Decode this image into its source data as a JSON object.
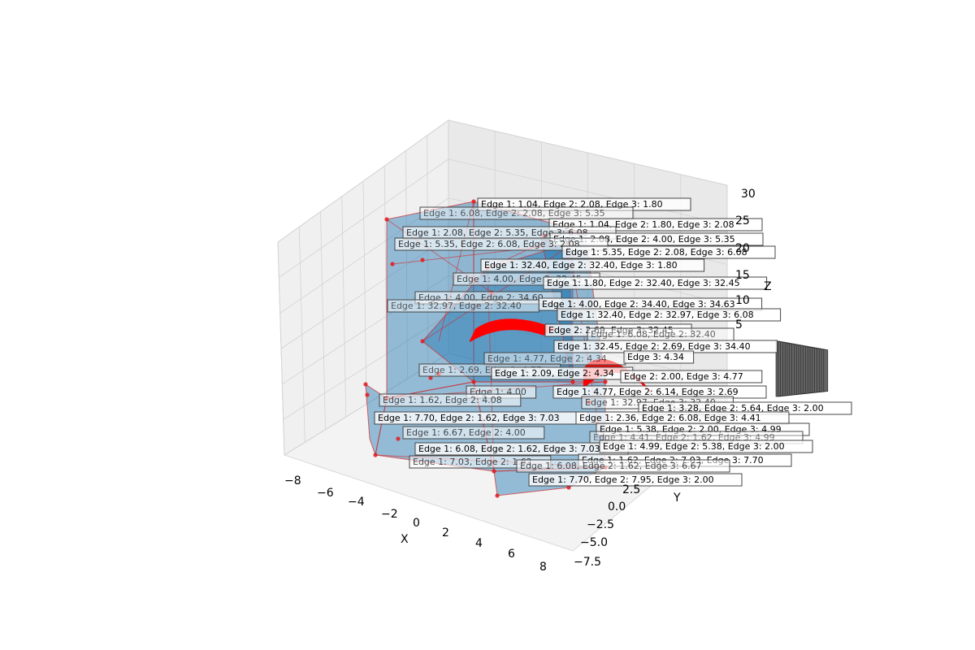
{
  "chart_data": {
    "type": "3d-mesh",
    "xlabel": "X",
    "ylabel": "Y",
    "zlabel": "Z",
    "xlim": [
      -9,
      9
    ],
    "ylim": [
      -8,
      4
    ],
    "zlim": [
      -5,
      30
    ],
    "x_ticks": [
      "−8",
      "−6",
      "−4",
      "−2",
      "0",
      "2",
      "4",
      "6",
      "8"
    ],
    "y_ticks": [
      "−7.5",
      "−5.0",
      "−2.5",
      "0.0",
      "2.5"
    ],
    "z_ticks": [
      "5",
      "10",
      "15",
      "20",
      "25",
      "30"
    ],
    "grid": true,
    "mesh_face_color": "#1f77b4",
    "mesh_edge_color": "#d62728",
    "vertex_color": "#e31a1c",
    "edge_labels": [
      "Edge 1: 1.04, Edge 2: 2.08, Edge 3: 1.80",
      "Edge 1: 6.08, Edge 2: 2.08, Edge 3: 5.35",
      "Edge 1: 1.04, Edge 2: 1.80, Edge 3: 2.08",
      "Edge 1: 2.08, Edge 2: 5.35, Edge 3: 6.08",
      "Edge 1: 2.08, Edge 2: 4.00, Edge 3: 5.35",
      "Edge 1: 5.35, Edge 2: 6.08, Edge 3: 2.08",
      "Edge 1: 5.35, Edge 2: 2.08, Edge 3: 6.08",
      "Edge 1: 32.40, Edge 2: 32.40, Edge 3: 1.80",
      "Edge 1: 4.00, Edge 2: 32.45",
      "Edge 1: 1.80, Edge 2: 32.40, Edge 3: 32.45",
      "Edge 1: 4.00, Edge 2: 34.60",
      "Edge 1: 4.00, Edge 2: 34.40, Edge 3: 34.63",
      "Edge 1: 32.97, Edge 2: 32.40",
      "Edge 1: 32.40, Edge 2: 32.97, Edge 3: 6.08",
      "Edge 2: 2.69, Edge 3: 32.45",
      "Edge 1: 6.08, Edge 2: 32.40",
      "Edge 1: 32.45, Edge 2: 2.69, Edge 3: 34.40",
      "Edge 1: 4.77, Edge 2: 4.34",
      "Edge 3: 4.34",
      "Edge 1: 2.69, Edge 2: 4.77",
      "Edge 1: 2.09, Edge 2: 4.34",
      "Edge 2: 2.00, Edge 3: 4.77",
      "Edge 1: 4.00",
      "Edge 1: 4.77, Edge 2: 6.14, Edge 3: 2.69",
      "Edge 1: 1.62, Edge 2: 4.08",
      "Edge 1: 32.97, Edge 3: 32.40",
      "Edge 1: 3.28, Edge 2: 5.64, Edge 3: 2.00",
      "Edge 1: 7.70, Edge 2: 1.62, Edge 3: 7.03",
      "Edge 1: 2.36, Edge 2: 6.08, Edge 3: 4.41",
      "Edge 1: 6.67, Edge 2: 4.00",
      "Edge 1: 5.38, Edge 2: 2.00, Edge 3: 4.99",
      "Edge 1: 4.41, Edge 2: 1.62, Edge 3: 4.99",
      "Edge 1: 6.08, Edge 2: 1.62, Edge 3: 7.03",
      "Edge 1: 4.99, Edge 2: 5.38, Edge 3: 2.00",
      "Edge 1: 7.03, Edge 2: 1.62",
      "Edge 1: 1.62, Edge 2: 7.03, Edge 3: 7.70",
      "Edge 1: 6.08, Edge 2: 1.62, Edge 3: 6.67",
      "Edge 1: 7.70, Edge 2: 7.95, Edge 3: 2.00"
    ]
  }
}
